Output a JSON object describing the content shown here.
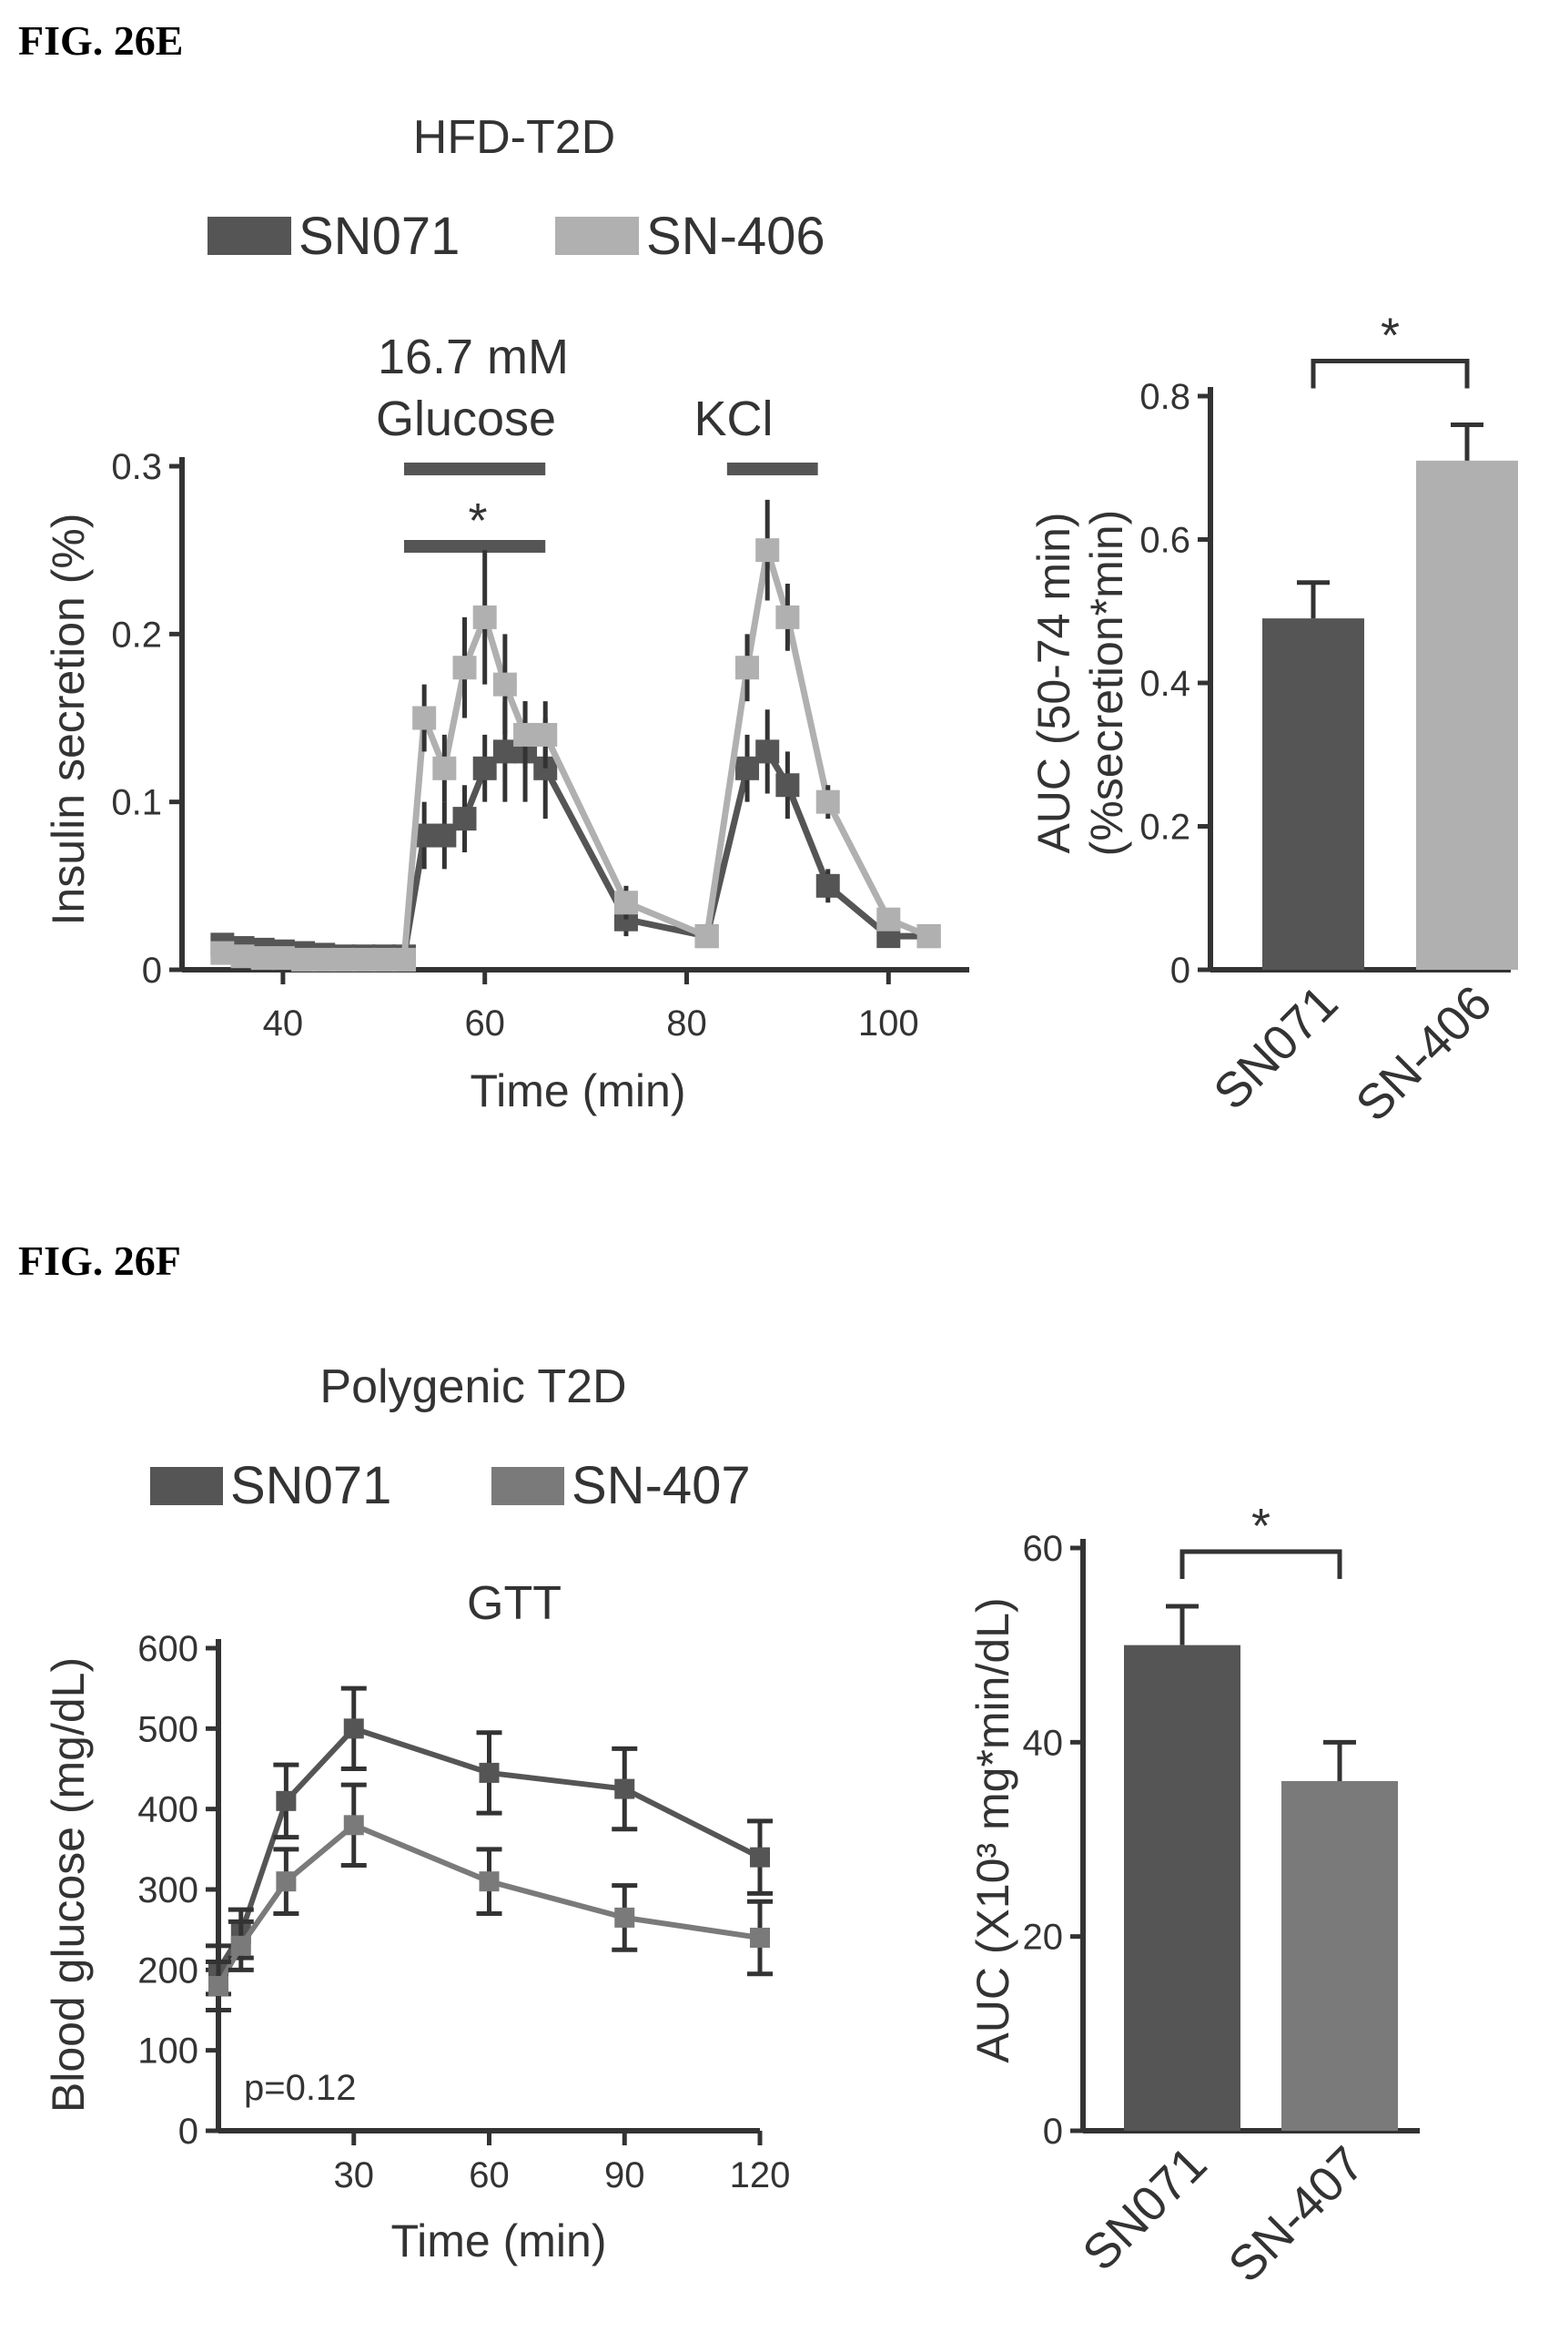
{
  "labels": {
    "fig_e": "FIG. 26E",
    "fig_f": "FIG. 26F"
  },
  "colors": {
    "dark": "#555555",
    "light": "#b0b0b0",
    "medium": "#7a7a7a",
    "text": "#333333",
    "lightText": "#9e9e9e"
  },
  "chart_data": [
    {
      "id": "e-line",
      "type": "line",
      "title": "HFD-T2D",
      "legend": [
        {
          "name": "SN071",
          "color": "dark"
        },
        {
          "name": "SN-406",
          "color": "light"
        }
      ],
      "annotations": {
        "stim1_line1": "16.7 mM",
        "stim1_line2": "Glucose",
        "stim2": "KCl",
        "sig": "*"
      },
      "xlabel": "Time (min)",
      "ylabel": "Insulin secretion (%)",
      "xlim": [
        30,
        108
      ],
      "ylim": [
        0,
        0.3
      ],
      "xticks": [
        40,
        60,
        80,
        100
      ],
      "xtick_labels": [
        "40",
        "60",
        "80",
        "100"
      ],
      "yticks": [
        0,
        0.1,
        0.2,
        0.3
      ],
      "ytick_labels": [
        "0",
        "0.1",
        "0.2",
        "0.3"
      ],
      "series": [
        {
          "name": "SN071",
          "color": "dark",
          "x": [
            34,
            36,
            38,
            40,
            42,
            44,
            46,
            48,
            50,
            52,
            54,
            56,
            58,
            60,
            62,
            64,
            66,
            74,
            82,
            86,
            88,
            90,
            94,
            100,
            104
          ],
          "values": [
            0.015,
            0.013,
            0.012,
            0.011,
            0.01,
            0.009,
            0.008,
            0.008,
            0.008,
            0.008,
            0.08,
            0.08,
            0.09,
            0.12,
            0.13,
            0.13,
            0.12,
            0.03,
            0.02,
            0.12,
            0.13,
            0.11,
            0.05,
            0.02,
            0.02
          ],
          "errors": [
            0.005,
            0.004,
            0.004,
            0.004,
            0.003,
            0.003,
            0.003,
            0.003,
            0.003,
            0.003,
            0.02,
            0.02,
            0.02,
            0.02,
            0.03,
            0.03,
            0.03,
            0.01,
            0.005,
            0.02,
            0.025,
            0.02,
            0.01,
            0.005,
            0.005
          ]
        },
        {
          "name": "SN-406",
          "color": "light",
          "x": [
            34,
            36,
            38,
            40,
            42,
            44,
            46,
            48,
            50,
            52,
            54,
            56,
            58,
            60,
            62,
            64,
            66,
            74,
            82,
            86,
            88,
            90,
            94,
            100,
            104
          ],
          "values": [
            0.01,
            0.008,
            0.007,
            0.007,
            0.006,
            0.006,
            0.006,
            0.006,
            0.006,
            0.006,
            0.15,
            0.12,
            0.18,
            0.21,
            0.17,
            0.14,
            0.14,
            0.04,
            0.02,
            0.18,
            0.25,
            0.21,
            0.1,
            0.03,
            0.02
          ],
          "errors": [
            0.004,
            0.003,
            0.003,
            0.003,
            0.003,
            0.003,
            0.003,
            0.003,
            0.003,
            0.003,
            0.02,
            0.02,
            0.03,
            0.04,
            0.03,
            0.02,
            0.02,
            0.01,
            0.005,
            0.02,
            0.03,
            0.02,
            0.01,
            0.005,
            0.005
          ]
        }
      ]
    },
    {
      "id": "e-bar",
      "type": "bar",
      "categories": [
        "SN071",
        "SN-406"
      ],
      "category_colors": [
        "dark",
        "light"
      ],
      "values": [
        0.49,
        0.71
      ],
      "errors": [
        0.05,
        0.05
      ],
      "ylabel_line1": "AUC (50-74 min)",
      "ylabel_line2": "(%secretion*min)",
      "ylim": [
        0,
        0.8
      ],
      "yticks": [
        0,
        0.2,
        0.4,
        0.6,
        0.8
      ],
      "ytick_labels": [
        "0",
        "0.2",
        "0.4",
        "0.6",
        "0.8"
      ],
      "sig": "*"
    },
    {
      "id": "f-line",
      "type": "line",
      "title": "Polygenic T2D",
      "subtitle": "GTT",
      "legend": [
        {
          "name": "SN071",
          "color": "dark"
        },
        {
          "name": "SN-407",
          "color": "medium"
        }
      ],
      "annotation": "p=0.12",
      "xlabel": "Time (min)",
      "ylabel": "Blood glucose (mg/dL)",
      "xlim": [
        0,
        120
      ],
      "ylim": [
        0,
        600
      ],
      "xticks": [
        30,
        60,
        90,
        120
      ],
      "xtick_labels": [
        "30",
        "60",
        "90",
        "120"
      ],
      "yticks": [
        0,
        100,
        200,
        300,
        400,
        500,
        600
      ],
      "ytick_labels": [
        "0",
        "100",
        "200",
        "300",
        "400",
        "500",
        "600"
      ],
      "series": [
        {
          "name": "SN071",
          "color": "dark",
          "x": [
            0,
            5,
            15,
            30,
            60,
            90,
            120
          ],
          "values": [
            200,
            245,
            410,
            500,
            445,
            425,
            340
          ],
          "errors": [
            30,
            30,
            45,
            50,
            50,
            50,
            45
          ]
        },
        {
          "name": "SN-407",
          "color": "medium",
          "x": [
            0,
            5,
            15,
            30,
            60,
            90,
            120
          ],
          "values": [
            180,
            230,
            310,
            380,
            310,
            265,
            240
          ],
          "errors": [
            30,
            30,
            40,
            50,
            40,
            40,
            45
          ]
        }
      ]
    },
    {
      "id": "f-bar",
      "type": "bar",
      "categories": [
        "SN071",
        "SN-407"
      ],
      "category_colors": [
        "dark",
        "medium"
      ],
      "values": [
        50,
        36
      ],
      "errors": [
        4,
        4
      ],
      "ylabel": "AUC (X10³ mg*min/dL)",
      "ylim": [
        0,
        60
      ],
      "yticks": [
        0,
        20,
        40,
        60
      ],
      "ytick_labels": [
        "0",
        "20",
        "40",
        "60"
      ],
      "sig": "*"
    }
  ]
}
